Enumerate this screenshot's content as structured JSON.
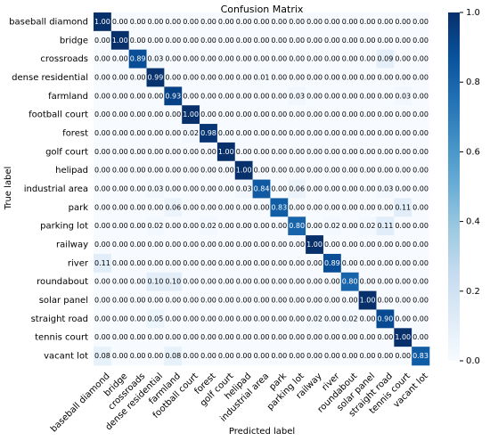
{
  "chart_data": {
    "type": "heatmap",
    "title": "Confusion Matrix",
    "xlabel": "Predicted label",
    "ylabel": "True label",
    "categories": [
      "baseball diamond",
      "bridge",
      "crossroads",
      "dense residential",
      "farmland",
      "football court",
      "forest",
      "golf court",
      "helipad",
      "industrial area",
      "park",
      "parking lot",
      "railway",
      "river",
      "roundabout",
      "solar panel",
      "straight road",
      "tennis court",
      "vacant lot"
    ],
    "values": [
      [
        1,
        0,
        0,
        0,
        0,
        0,
        0,
        0,
        0,
        0,
        0,
        0,
        0,
        0,
        0,
        0,
        0,
        0,
        0
      ],
      [
        0,
        1,
        0,
        0,
        0,
        0,
        0,
        0,
        0,
        0,
        0,
        0,
        0,
        0,
        0,
        0,
        0,
        0,
        0
      ],
      [
        0,
        0,
        0.89,
        0.03,
        0,
        0,
        0,
        0,
        0,
        0,
        0,
        0,
        0,
        0,
        0,
        0,
        0.09,
        0,
        0
      ],
      [
        0,
        0,
        0,
        0.99,
        0,
        0,
        0,
        0,
        0,
        0.01,
        0,
        0,
        0,
        0,
        0,
        0,
        0,
        0,
        0
      ],
      [
        0,
        0,
        0,
        0,
        0.93,
        0,
        0,
        0,
        0,
        0,
        0,
        0.03,
        0,
        0,
        0,
        0,
        0,
        0.03,
        0
      ],
      [
        0,
        0,
        0,
        0,
        0,
        1,
        0,
        0,
        0,
        0,
        0,
        0,
        0,
        0,
        0,
        0,
        0,
        0,
        0
      ],
      [
        0,
        0,
        0,
        0,
        0,
        0.02,
        0.98,
        0,
        0,
        0,
        0,
        0,
        0,
        0,
        0,
        0,
        0,
        0,
        0
      ],
      [
        0,
        0,
        0,
        0,
        0,
        0,
        0,
        1,
        0,
        0,
        0,
        0,
        0,
        0,
        0,
        0,
        0,
        0,
        0
      ],
      [
        0,
        0,
        0,
        0,
        0,
        0,
        0,
        0,
        1,
        0,
        0,
        0,
        0,
        0,
        0,
        0,
        0,
        0,
        0
      ],
      [
        0,
        0,
        0,
        0.03,
        0,
        0,
        0,
        0,
        0.03,
        0.84,
        0,
        0.06,
        0,
        0,
        0,
        0,
        0.03,
        0,
        0
      ],
      [
        0,
        0,
        0,
        0,
        0.06,
        0,
        0,
        0,
        0,
        0,
        0.83,
        0,
        0,
        0,
        0,
        0,
        0,
        0.11,
        0
      ],
      [
        0,
        0,
        0,
        0.02,
        0,
        0,
        0.02,
        0,
        0,
        0,
        0,
        0.8,
        0,
        0.02,
        0,
        0.02,
        0.11,
        0,
        0
      ],
      [
        0,
        0,
        0,
        0,
        0,
        0,
        0,
        0,
        0,
        0,
        0,
        0,
        1,
        0,
        0,
        0,
        0,
        0,
        0
      ],
      [
        0.11,
        0,
        0,
        0,
        0,
        0,
        0,
        0,
        0,
        0,
        0,
        0,
        0,
        0.89,
        0,
        0,
        0,
        0,
        0
      ],
      [
        0,
        0,
        0,
        0.1,
        0.1,
        0,
        0,
        0,
        0,
        0,
        0,
        0,
        0,
        0,
        0.8,
        0,
        0,
        0,
        0
      ],
      [
        0,
        0,
        0,
        0,
        0,
        0,
        0,
        0,
        0,
        0,
        0,
        0,
        0,
        0,
        0,
        1,
        0,
        0,
        0
      ],
      [
        0,
        0,
        0,
        0.05,
        0,
        0,
        0,
        0,
        0,
        0,
        0,
        0,
        0.02,
        0,
        0.02,
        0,
        0.9,
        0,
        0
      ],
      [
        0,
        0,
        0,
        0,
        0,
        0,
        0,
        0,
        0,
        0,
        0,
        0,
        0,
        0,
        0,
        0,
        0,
        1,
        0
      ],
      [
        0.08,
        0,
        0,
        0,
        0.08,
        0,
        0,
        0,
        0,
        0,
        0,
        0,
        0,
        0,
        0,
        0,
        0,
        0,
        0.83
      ]
    ],
    "value_labels": [
      [
        "1.00",
        "0.00",
        "0.00",
        "0.00",
        "0.00",
        "0.00",
        "0.00",
        "0.00",
        "0.00",
        "0.00",
        "0.00",
        "0.00",
        "0.00",
        "0.00",
        "0.00",
        "0.00",
        "0.00",
        "0.00",
        "0.00"
      ],
      [
        "0.00",
        "1.00",
        "0.00",
        "0.00",
        "0.00",
        "0.00",
        "0.00",
        "0.00",
        "0.00",
        "0.00",
        "0.00",
        "0.00",
        "0.00",
        "0.00",
        "0.00",
        "0.00",
        "0.00",
        "0.00",
        "0.00"
      ],
      [
        "0.00",
        "0.00",
        "0.89",
        "0.03",
        "0.00",
        "0.00",
        "0.00",
        "0.00",
        "0.00",
        "0.00",
        "0.00",
        "0.00",
        "0.00",
        "0.00",
        "0.00",
        "0.00",
        "0.09",
        "0.00",
        "0.00"
      ],
      [
        "0.00",
        "0.00",
        "0.00",
        "0.99",
        "0.00",
        "0.00",
        "0.00",
        "0.00",
        "0.00",
        "0.01",
        "0.00",
        "0.00",
        "0.00",
        "0.00",
        "0.00",
        "0.00",
        "0.00",
        "0.00",
        "0.00"
      ],
      [
        "0.00",
        "0.00",
        "0.00",
        "0.00",
        "0.93",
        "0.00",
        "0.00",
        "0.00",
        "0.00",
        "0.00",
        "0.00",
        "0.03",
        "0.00",
        "0.00",
        "0.00",
        "0.00",
        "0.00",
        "0.03",
        "0.00"
      ],
      [
        "0.00",
        "0.00",
        "0.00",
        "0.00",
        "0.00",
        "1.00",
        "0.00",
        "0.00",
        "0.00",
        "0.00",
        "0.00",
        "0.00",
        "0.00",
        "0.00",
        "0.00",
        "0.00",
        "0.00",
        "0.00",
        "0.00"
      ],
      [
        "0.00",
        "0.00",
        "0.00",
        "0.00",
        "0.00",
        "0.02",
        "0.98",
        "0.00",
        "0.00",
        "0.00",
        "0.00",
        "0.00",
        "0.00",
        "0.00",
        "0.00",
        "0.00",
        "0.00",
        "0.00",
        "0.00"
      ],
      [
        "0.00",
        "0.00",
        "0.00",
        "0.00",
        "0.00",
        "0.00",
        "0.00",
        "1.00",
        "0.00",
        "0.00",
        "0.00",
        "0.00",
        "0.00",
        "0.00",
        "0.00",
        "0.00",
        "0.00",
        "0.00",
        "0.00"
      ],
      [
        "0.00",
        "0.00",
        "0.00",
        "0.00",
        "0.00",
        "0.00",
        "0.00",
        "0.00",
        "1.00",
        "0.00",
        "0.00",
        "0.00",
        "0.00",
        "0.00",
        "0.00",
        "0.00",
        "0.00",
        "0.00",
        "0.00"
      ],
      [
        "0.00",
        "0.00",
        "0.00",
        "0.03",
        "0.00",
        "0.00",
        "0.00",
        "0.00",
        "0.03",
        "0.84",
        "0.00",
        "0.06",
        "0.00",
        "0.00",
        "0.00",
        "0.00",
        "0.03",
        "0.00",
        "0.00"
      ],
      [
        "0.00",
        "0.00",
        "0.00",
        "0.00",
        "0.06",
        "0.00",
        "0.00",
        "0.00",
        "0.00",
        "0.00",
        "0.83",
        "0.00",
        "0.00",
        "0.00",
        "0.00",
        "0.00",
        "0.00",
        "0.11",
        "0.00"
      ],
      [
        "0.00",
        "0.00",
        "0.00",
        "0.02",
        "0.00",
        "0.00",
        "0.02",
        "0.00",
        "0.00",
        "0.00",
        "0.00",
        "0.80",
        "0.00",
        "0.02",
        "0.00",
        "0.02",
        "0.11",
        "0.00",
        "0.00"
      ],
      [
        "0.00",
        "0.00",
        "0.00",
        "0.00",
        "0.00",
        "0.00",
        "0.00",
        "0.00",
        "0.00",
        "0.00",
        "0.00",
        "0.00",
        "1.00",
        "0.00",
        "0.00",
        "0.00",
        "0.00",
        "0.00",
        "0.00"
      ],
      [
        "0.11",
        "0.00",
        "0.00",
        "0.00",
        "0.00",
        "0.00",
        "0.00",
        "0.00",
        "0.00",
        "0.00",
        "0.00",
        "0.00",
        "0.00",
        "0.89",
        "0.00",
        "0.00",
        "0.00",
        "0.00",
        "0.00"
      ],
      [
        "0.00",
        "0.00",
        "0.00",
        "0.10",
        "0.10",
        "0.00",
        "0.00",
        "0.00",
        "0.00",
        "0.00",
        "0.00",
        "0.00",
        "0.00",
        "0.00",
        "0.80",
        "0.00",
        "0.00",
        "0.00",
        "0.00"
      ],
      [
        "0.00",
        "0.00",
        "0.00",
        "0.00",
        "0.00",
        "0.00",
        "0.00",
        "0.00",
        "0.00",
        "0.00",
        "0.00",
        "0.00",
        "0.00",
        "0.00",
        "0.00",
        "1.00",
        "0.00",
        "0.00",
        "0.00"
      ],
      [
        "0.00",
        "0.00",
        "0.00",
        "0.05",
        "0.00",
        "0.00",
        "0.00",
        "0.00",
        "0.00",
        "0.00",
        "0.00",
        "0.00",
        "0.02",
        "0.00",
        "0.02",
        "0.00",
        "0.90",
        "0.00",
        "0.00"
      ],
      [
        "0.00",
        "0.00",
        "0.00",
        "0.00",
        "0.00",
        "0.00",
        "0.00",
        "0.00",
        "0.00",
        "0.00",
        "0.00",
        "0.00",
        "0.00",
        "0.00",
        "0.00",
        "0.00",
        "0.00",
        "1.00",
        "0.00"
      ],
      [
        "0.08",
        "0.00",
        "0.00",
        "0.00",
        "0.08",
        "0.00",
        "0.00",
        "0.00",
        "0.00",
        "0.00",
        "0.00",
        "0.00",
        "0.00",
        "0.00",
        "0.00",
        "0.00",
        "0.00",
        "0.00",
        "0.83"
      ]
    ],
    "zlim": [
      0,
      1
    ],
    "zticks": [
      {
        "value": 0,
        "label": "0.0"
      },
      {
        "value": 0.2,
        "label": "0.2"
      },
      {
        "value": 0.4,
        "label": "0.4"
      },
      {
        "value": 0.6,
        "label": "0.6"
      },
      {
        "value": 0.8,
        "label": "0.8"
      },
      {
        "value": 1,
        "label": "1.0"
      }
    ],
    "colorscale": [
      "#f7fbff",
      "#deebf7",
      "#c6dbef",
      "#9ecae1",
      "#6baed6",
      "#4292c6",
      "#2171b5",
      "#08519c",
      "#08306b"
    ]
  }
}
